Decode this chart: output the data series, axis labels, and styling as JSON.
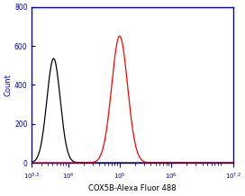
{
  "title": "",
  "xlabel": "COX5B-Alexa Fluor 488",
  "ylabel": "Count",
  "xlim_log": [
    3.3,
    7.2
  ],
  "ylim": [
    0,
    800
  ],
  "yticks": [
    0,
    200,
    400,
    600,
    800
  ],
  "black_peak_log": 3.72,
  "black_peak_height": 535,
  "black_sigma_log": 0.13,
  "red_peak_log": 5.0,
  "red_peak_height": 650,
  "red_sigma_log": 0.155,
  "black_color": "#000000",
  "red_color": "#ff0000",
  "axis_color": "#0000cc",
  "background_color": "#ffffff",
  "spine_color": "#0000cc",
  "tick_color": "#0000cc",
  "label_color": "#0000cc",
  "xlabel_color": "#000000",
  "figsize": [
    2.72,
    2.18
  ],
  "dpi": 100
}
